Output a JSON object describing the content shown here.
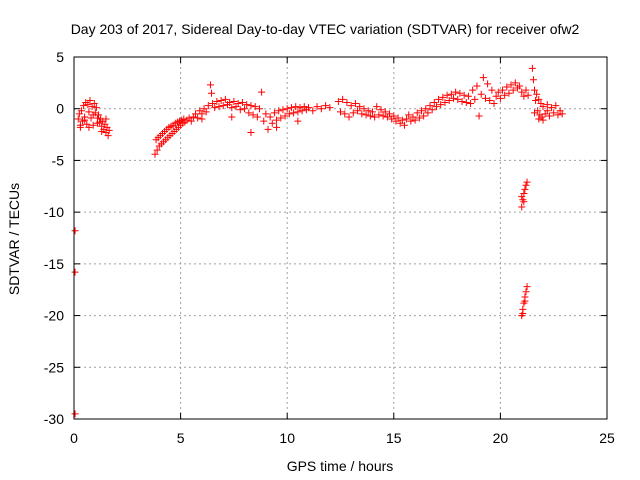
{
  "chart_data": {
    "type": "scatter",
    "title": "Day 203 of 2017, Sidereal Day-to-day VTEC variation (SDTVAR) for receiver ofw2",
    "xlabel": "GPS time / hours",
    "ylabel": "SDTVAR / TECUs",
    "xlim": [
      0,
      25
    ],
    "ylim": [
      -30,
      5
    ],
    "xticks": [
      0,
      5,
      10,
      15,
      20,
      25
    ],
    "yticks": [
      5,
      0,
      -5,
      -10,
      -15,
      -20,
      -25,
      -30
    ],
    "grid": true,
    "legend": "none",
    "marker": "+",
    "color": "#ff0000",
    "series": [
      {
        "name": "SDTVAR",
        "points": [
          [
            0.05,
            -11.8
          ],
          [
            0.05,
            -15.8
          ],
          [
            0.05,
            -29.5
          ],
          [
            0.2,
            -1.0
          ],
          [
            0.25,
            -0.5
          ],
          [
            0.3,
            -1.8
          ],
          [
            0.35,
            -0.2
          ],
          [
            0.4,
            -1.2
          ],
          [
            0.45,
            0.3
          ],
          [
            0.5,
            -0.8
          ],
          [
            0.55,
            0.6
          ],
          [
            0.6,
            -1.5
          ],
          [
            0.65,
            0.4
          ],
          [
            0.7,
            -0.3
          ],
          [
            0.75,
            0.8
          ],
          [
            0.8,
            -0.9
          ],
          [
            0.85,
            0.2
          ],
          [
            0.9,
            -1.6
          ],
          [
            0.95,
            0.5
          ],
          [
            1.0,
            -0.4
          ],
          [
            1.05,
            0.1
          ],
          [
            1.1,
            -0.9
          ],
          [
            1.15,
            -0.6
          ],
          [
            1.2,
            -1.3
          ],
          [
            1.25,
            -1.0
          ],
          [
            1.3,
            -1.7
          ],
          [
            1.35,
            -1.2
          ],
          [
            1.4,
            -2.0
          ],
          [
            1.45,
            -1.5
          ],
          [
            1.5,
            -2.3
          ],
          [
            1.55,
            -1.8
          ],
          [
            1.6,
            -2.6
          ],
          [
            1.65,
            -2.1
          ],
          [
            0.3,
            -1.6
          ],
          [
            0.5,
            -1.1
          ],
          [
            0.7,
            -1.8
          ],
          [
            0.9,
            -0.6
          ],
          [
            1.1,
            -1.4
          ],
          [
            1.3,
            -2.2
          ],
          [
            1.5,
            -1.0
          ],
          [
            3.8,
            -4.4
          ],
          [
            3.85,
            -3.0
          ],
          [
            3.9,
            -4.0
          ],
          [
            3.95,
            -2.8
          ],
          [
            4.0,
            -3.6
          ],
          [
            4.05,
            -2.6
          ],
          [
            4.1,
            -3.4
          ],
          [
            4.15,
            -2.4
          ],
          [
            4.2,
            -3.2
          ],
          [
            4.25,
            -2.2
          ],
          [
            4.3,
            -3.0
          ],
          [
            4.35,
            -2.0
          ],
          [
            4.4,
            -2.8
          ],
          [
            4.45,
            -1.8
          ],
          [
            4.5,
            -2.6
          ],
          [
            4.55,
            -1.7
          ],
          [
            4.6,
            -2.4
          ],
          [
            4.65,
            -1.6
          ],
          [
            4.7,
            -2.2
          ],
          [
            4.75,
            -1.4
          ],
          [
            4.8,
            -2.0
          ],
          [
            4.85,
            -1.3
          ],
          [
            4.9,
            -1.8
          ],
          [
            4.95,
            -1.2
          ],
          [
            5.0,
            -1.6
          ],
          [
            5.05,
            -1.1
          ],
          [
            5.1,
            -1.4
          ],
          [
            5.15,
            -1.0
          ],
          [
            5.2,
            -1.3
          ],
          [
            5.3,
            -1.1
          ],
          [
            5.4,
            -0.9
          ],
          [
            5.5,
            -1.2
          ],
          [
            5.6,
            -0.8
          ],
          [
            5.7,
            -0.5
          ],
          [
            5.8,
            -0.9
          ],
          [
            5.9,
            -0.2
          ],
          [
            6.0,
            -0.5
          ],
          [
            6.1,
            0.0
          ],
          [
            6.2,
            -0.3
          ],
          [
            6.3,
            0.3
          ],
          [
            6.4,
            2.3
          ],
          [
            6.45,
            1.5
          ],
          [
            6.5,
            0.5
          ],
          [
            6.6,
            0.1
          ],
          [
            6.7,
            0.7
          ],
          [
            6.8,
            0.2
          ],
          [
            6.9,
            0.8
          ],
          [
            7.0,
            0.3
          ],
          [
            7.1,
            0.9
          ],
          [
            7.2,
            0.4
          ],
          [
            7.3,
            0.6
          ],
          [
            7.4,
            0.1
          ],
          [
            7.5,
            0.7
          ],
          [
            7.6,
            0.2
          ],
          [
            7.7,
            0.5
          ],
          [
            7.8,
            -0.1
          ],
          [
            7.9,
            0.6
          ],
          [
            8.0,
            0.0
          ],
          [
            8.1,
            0.4
          ],
          [
            8.2,
            -0.4
          ],
          [
            8.3,
            0.3
          ],
          [
            8.4,
            -0.6
          ],
          [
            8.5,
            0.2
          ],
          [
            8.6,
            -0.8
          ],
          [
            8.7,
            0.0
          ],
          [
            8.8,
            1.6
          ],
          [
            8.9,
            -1.2
          ],
          [
            9.0,
            -0.5
          ],
          [
            9.1,
            -2.0
          ],
          [
            9.2,
            -0.8
          ],
          [
            9.3,
            -1.4
          ],
          [
            9.4,
            -0.4
          ],
          [
            9.5,
            -1.1
          ],
          [
            9.6,
            -0.2
          ],
          [
            9.7,
            -0.9
          ],
          [
            9.8,
            -0.1
          ],
          [
            9.9,
            -0.7
          ],
          [
            10.0,
            0.0
          ],
          [
            10.1,
            -0.5
          ],
          [
            10.2,
            0.1
          ],
          [
            10.3,
            -0.4
          ],
          [
            10.4,
            0.2
          ],
          [
            10.5,
            -0.3
          ],
          [
            10.6,
            0.1
          ],
          [
            10.7,
            -0.2
          ],
          [
            10.8,
            0.2
          ],
          [
            10.9,
            -0.1
          ],
          [
            11.0,
            0.1
          ],
          [
            11.2,
            -0.2
          ],
          [
            11.4,
            0.2
          ],
          [
            11.6,
            0.0
          ],
          [
            11.8,
            0.3
          ],
          [
            12.0,
            0.1
          ],
          [
            8.3,
            -2.3
          ],
          [
            7.4,
            -0.8
          ],
          [
            6.0,
            -1.0
          ],
          [
            9.5,
            -1.8
          ],
          [
            10.5,
            -1.2
          ],
          [
            12.4,
            0.7
          ],
          [
            12.5,
            -0.3
          ],
          [
            12.6,
            0.9
          ],
          [
            12.7,
            -0.5
          ],
          [
            12.8,
            0.6
          ],
          [
            12.9,
            -0.8
          ],
          [
            13.0,
            0.3
          ],
          [
            13.1,
            -0.4
          ],
          [
            13.2,
            0.5
          ],
          [
            13.3,
            -0.2
          ],
          [
            13.4,
            0.2
          ],
          [
            13.5,
            -0.5
          ],
          [
            13.6,
            0.0
          ],
          [
            13.7,
            -0.6
          ],
          [
            13.8,
            -0.2
          ],
          [
            13.9,
            -0.7
          ],
          [
            14.0,
            -0.3
          ],
          [
            14.1,
            -0.8
          ],
          [
            14.2,
            0.2
          ],
          [
            14.3,
            -0.6
          ],
          [
            14.4,
            -0.1
          ],
          [
            14.5,
            -0.7
          ],
          [
            14.6,
            -0.3
          ],
          [
            14.7,
            -0.8
          ],
          [
            14.8,
            -0.5
          ],
          [
            14.9,
            -1.0
          ],
          [
            15.0,
            -0.7
          ],
          [
            15.1,
            -1.2
          ],
          [
            15.2,
            -0.9
          ],
          [
            15.3,
            -1.4
          ],
          [
            15.4,
            -1.1
          ],
          [
            15.5,
            -1.6
          ],
          [
            15.6,
            -1.0
          ],
          [
            15.7,
            -0.6
          ],
          [
            15.8,
            -1.2
          ],
          [
            15.9,
            -0.8
          ],
          [
            16.0,
            -1.1
          ],
          [
            16.1,
            -0.4
          ],
          [
            16.2,
            -0.9
          ],
          [
            16.3,
            -0.2
          ],
          [
            16.4,
            -0.7
          ],
          [
            16.5,
            0.0
          ],
          [
            16.6,
            -0.4
          ],
          [
            16.7,
            0.3
          ],
          [
            16.8,
            -0.1
          ],
          [
            16.9,
            0.6
          ],
          [
            17.0,
            0.2
          ],
          [
            17.1,
            0.9
          ],
          [
            17.2,
            0.4
          ],
          [
            17.3,
            1.1
          ],
          [
            17.4,
            0.6
          ],
          [
            17.5,
            1.3
          ],
          [
            17.6,
            0.8
          ],
          [
            17.7,
            1.4
          ],
          [
            17.8,
            1.0
          ],
          [
            17.9,
            1.6
          ],
          [
            18.0,
            0.9
          ],
          [
            18.1,
            1.5
          ],
          [
            18.2,
            0.7
          ],
          [
            18.3,
            1.3
          ],
          [
            18.4,
            0.6
          ],
          [
            18.5,
            1.2
          ],
          [
            18.6,
            0.5
          ],
          [
            18.7,
            1.8
          ],
          [
            18.8,
            0.9
          ],
          [
            18.9,
            2.2
          ],
          [
            19.0,
            -0.7
          ],
          [
            19.1,
            1.4
          ],
          [
            19.2,
            3.0
          ],
          [
            19.3,
            1.0
          ],
          [
            19.4,
            2.4
          ],
          [
            19.5,
            0.8
          ],
          [
            19.6,
            1.8
          ],
          [
            19.7,
            0.5
          ],
          [
            19.8,
            1.2
          ],
          [
            19.9,
            1.6
          ],
          [
            20.0,
            1.0
          ],
          [
            20.1,
            1.8
          ],
          [
            20.2,
            1.3
          ],
          [
            20.3,
            2.1
          ],
          [
            20.4,
            1.5
          ],
          [
            20.5,
            2.3
          ],
          [
            20.6,
            1.8
          ],
          [
            20.7,
            2.5
          ],
          [
            20.8,
            2.0
          ],
          [
            20.9,
            2.2
          ],
          [
            21.0,
            1.6
          ],
          [
            21.1,
            1.2
          ],
          [
            21.2,
            1.8
          ],
          [
            21.3,
            1.3
          ],
          [
            21.0,
            -9.5
          ],
          [
            21.05,
            -8.8
          ],
          [
            21.1,
            -8.2
          ],
          [
            21.15,
            -7.8
          ],
          [
            21.2,
            -7.4
          ],
          [
            21.25,
            -7.1
          ],
          [
            21.0,
            -8.5
          ],
          [
            21.1,
            -9.0
          ],
          [
            21.0,
            -20.0
          ],
          [
            21.05,
            -19.4
          ],
          [
            21.1,
            -18.8
          ],
          [
            21.15,
            -18.2
          ],
          [
            21.2,
            -17.7
          ],
          [
            21.25,
            -17.2
          ],
          [
            21.05,
            -19.8
          ],
          [
            21.15,
            -18.6
          ],
          [
            21.5,
            3.9
          ],
          [
            21.55,
            2.8
          ],
          [
            21.6,
            1.8
          ],
          [
            21.65,
            0.8
          ],
          [
            21.7,
            1.4
          ],
          [
            21.75,
            -0.2
          ],
          [
            21.8,
            0.9
          ],
          [
            21.85,
            -0.6
          ],
          [
            21.9,
            0.5
          ],
          [
            21.95,
            -0.8
          ],
          [
            22.0,
            0.2
          ],
          [
            22.1,
            -0.5
          ],
          [
            22.2,
            0.4
          ],
          [
            22.3,
            -0.7
          ],
          [
            22.4,
            0.1
          ],
          [
            22.5,
            -0.4
          ],
          [
            22.6,
            0.3
          ],
          [
            22.7,
            -0.6
          ],
          [
            22.8,
            -0.2
          ],
          [
            22.9,
            -0.5
          ],
          [
            21.6,
            -0.4
          ],
          [
            21.8,
            -1.0
          ],
          [
            22.0,
            -1.1
          ],
          [
            22.2,
            -0.2
          ]
        ]
      }
    ]
  }
}
